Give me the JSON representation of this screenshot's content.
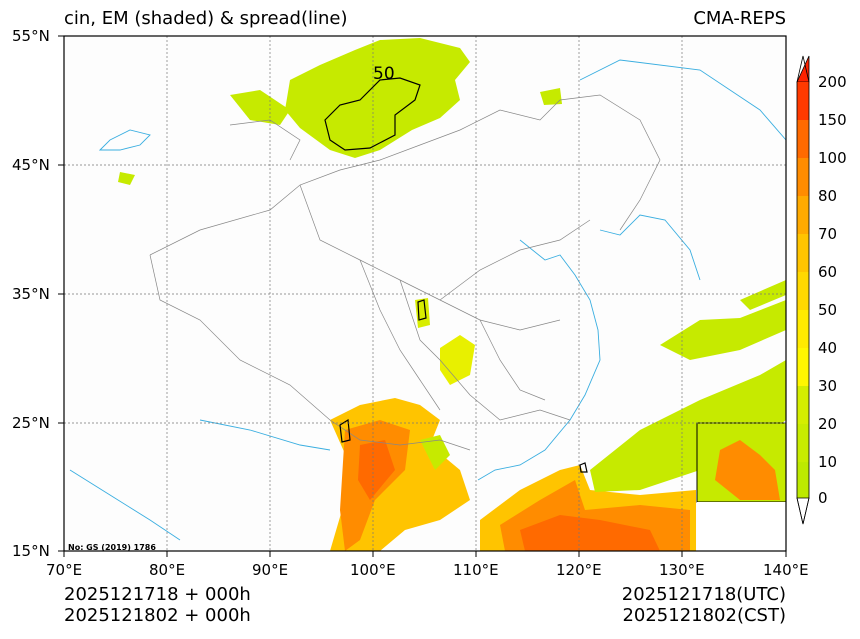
{
  "header": {
    "title_left": "cin, EM (shaded) & spread(line)",
    "title_right": "CMA-REPS"
  },
  "axes": {
    "lat_ticks": [
      "55°N",
      "45°N",
      "35°N",
      "25°N",
      "15°N"
    ],
    "lon_ticks": [
      "70°E",
      "80°E",
      "90°E",
      "100°E",
      "110°E",
      "120°E",
      "130°E",
      "140°E"
    ],
    "lon_range": [
      70,
      140
    ],
    "lat_range": [
      15,
      55
    ],
    "grid": "dashed"
  },
  "contour_label": "50",
  "credit": "No: GS (2019) 1786",
  "colorbar": {
    "levels": [
      "200",
      "150",
      "100",
      "80",
      "70",
      "60",
      "50",
      "40",
      "30",
      "20",
      "10",
      "0"
    ],
    "colors": [
      "#ff3a00",
      "#ff6a00",
      "#ff8c00",
      "#ffaa00",
      "#ffc400",
      "#ffd800",
      "#ffea00",
      "#fff700",
      "#d4ee00",
      "#c8ec00",
      "#bde900"
    ],
    "extend_top_color": "#ff2200",
    "extend_bottom_color": "#ffffff"
  },
  "footer": {
    "left_line1": "2025121718  +  000h",
    "left_line2": "2025121802  +  000h",
    "right_line1": "2025121718(UTC)",
    "right_line2": "2025121802(CST)"
  }
}
